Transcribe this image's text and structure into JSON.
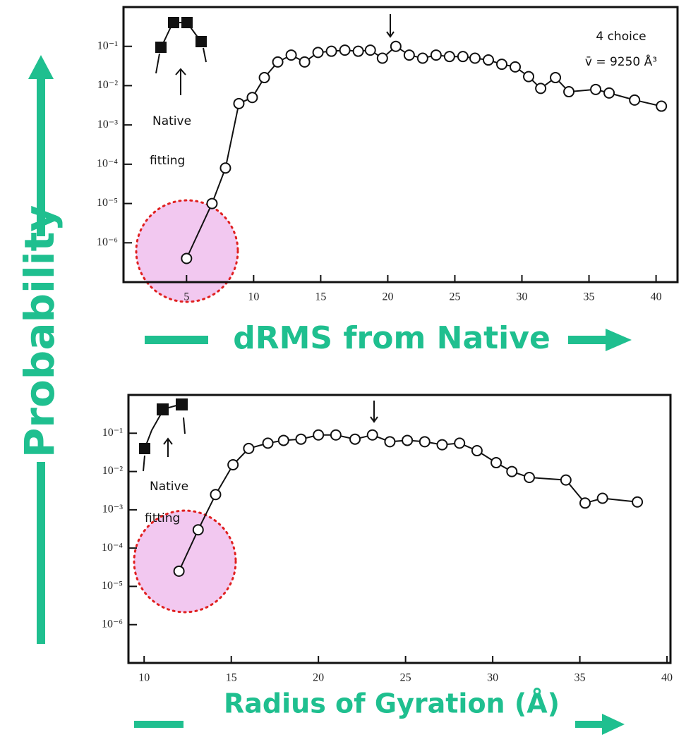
{
  "shared_ylabel": "Probability",
  "chart_data": [
    {
      "type": "line",
      "xlabel": "dRMS from Native",
      "ylog": true,
      "xlim": [
        0.3,
        41.6
      ],
      "ylim": [
        1e-07,
        1
      ],
      "xticks": [
        5,
        10,
        15,
        20,
        25,
        30,
        35,
        40
      ],
      "yticks": [
        {
          "value": 0.1,
          "label": "10⁻¹"
        },
        {
          "value": 0.01,
          "label": "10⁻²"
        },
        {
          "value": 0.001,
          "label": "10⁻³"
        },
        {
          "value": 0.0001,
          "label": "10⁻⁴"
        },
        {
          "value": 1e-05,
          "label": "10⁻⁵"
        },
        {
          "value": 1e-06,
          "label": "10⁻⁶"
        }
      ],
      "color": "#111111",
      "x": [
        5,
        6.9,
        7.9,
        8.9,
        9.9,
        10.8,
        11.8,
        12.8,
        13.8,
        14.8,
        15.8,
        16.8,
        17.8,
        18.7,
        19.6,
        20.6,
        21.6,
        22.6,
        23.6,
        24.6,
        25.6,
        26.5,
        27.5,
        28.5,
        29.5,
        30.5,
        31.4,
        32.5,
        33.5,
        35.5,
        36.5,
        38.4,
        40.4
      ],
      "values": [
        4e-07,
        1e-05,
        8e-05,
        0.0035,
        0.005,
        0.016,
        0.04,
        0.06,
        0.04,
        0.07,
        0.075,
        0.08,
        0.075,
        0.08,
        0.05,
        0.1,
        0.06,
        0.05,
        0.06,
        0.055,
        0.055,
        0.05,
        0.045,
        0.035,
        0.03,
        0.017,
        0.0085,
        0.016,
        0.007,
        0.008,
        0.0065,
        0.0043,
        0.003
      ],
      "annotations": [
        "Native",
        "fitting",
        "4 choice",
        "v̄ = 9250 Å³"
      ]
    },
    {
      "type": "line",
      "xlabel": "Radius of Gyration (Å)",
      "ylog": true,
      "xlim": [
        9.1,
        40.2
      ],
      "ylim": [
        1e-07,
        1
      ],
      "xticks": [
        10,
        15,
        20,
        25,
        30,
        35,
        40
      ],
      "yticks": [
        {
          "value": 0.1,
          "label": "10⁻¹"
        },
        {
          "value": 0.01,
          "label": "10⁻²"
        },
        {
          "value": 0.001,
          "label": "10⁻³"
        },
        {
          "value": 0.0001,
          "label": "10⁻⁴"
        },
        {
          "value": 1e-05,
          "label": "10⁻⁵"
        },
        {
          "value": 1e-06,
          "label": "10⁻⁶"
        }
      ],
      "color": "#111111",
      "x": [
        12.0,
        13.1,
        14.1,
        15.1,
        16.0,
        17.1,
        18.0,
        19.0,
        20.0,
        21.0,
        22.1,
        23.1,
        24.1,
        25.1,
        26.1,
        27.1,
        28.1,
        29.1,
        30.2,
        31.1,
        32.1,
        34.2,
        35.3,
        36.3,
        38.3
      ],
      "values": [
        2.5e-05,
        0.0003,
        0.0025,
        0.015,
        0.04,
        0.055,
        0.065,
        0.07,
        0.09,
        0.09,
        0.07,
        0.09,
        0.06,
        0.065,
        0.06,
        0.05,
        0.055,
        0.035,
        0.017,
        0.01,
        0.007,
        0.006,
        0.0015,
        0.002,
        0.0016
      ],
      "annotations": [
        "Native",
        "fitting"
      ]
    }
  ]
}
